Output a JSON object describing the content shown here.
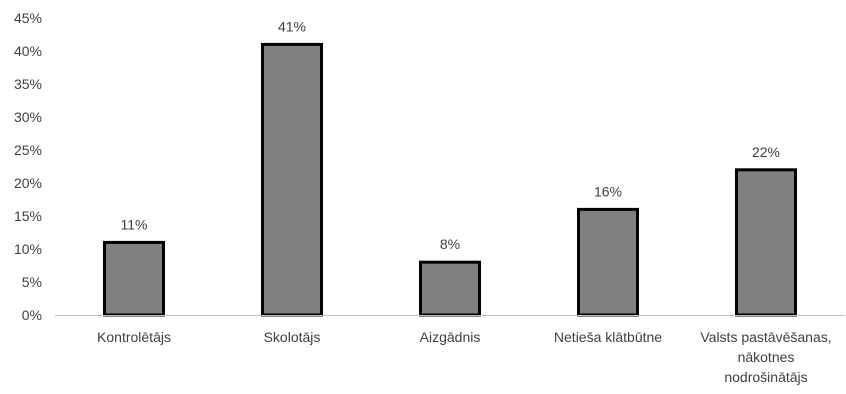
{
  "chart_data": {
    "type": "bar",
    "title": "",
    "xlabel": "",
    "ylabel": "",
    "categories": [
      "Kontrolētājs",
      "Skolotājs",
      "Aizgādnis",
      "Netieša klātbūtne",
      "Valsts pastāvēšanas, nākotnes nodrošinātājs"
    ],
    "category_lines": [
      [
        "Kontrolētājs"
      ],
      [
        "Skolotājs"
      ],
      [
        "Aizgādnis"
      ],
      [
        "Netieša klātbūtne"
      ],
      [
        "Valsts pastāvēšanas,",
        "nākotnes",
        "nodrošinātājs"
      ]
    ],
    "values": [
      11,
      41,
      8,
      16,
      22
    ],
    "data_labels": [
      "11%",
      "41%",
      "8%",
      "16%",
      "22%"
    ],
    "ylim": [
      0,
      45
    ],
    "yticks": [
      0,
      5,
      10,
      15,
      20,
      25,
      30,
      35,
      40,
      45
    ],
    "ytick_labels": [
      "0%",
      "5%",
      "10%",
      "15%",
      "20%",
      "25%",
      "30%",
      "35%",
      "40%",
      "45%"
    ],
    "grid": false,
    "legend": "none",
    "colors": {
      "bar_fill": "#808080",
      "bar_stroke": "#000000",
      "axis": "#bfbfbf",
      "text": "#404040"
    }
  }
}
